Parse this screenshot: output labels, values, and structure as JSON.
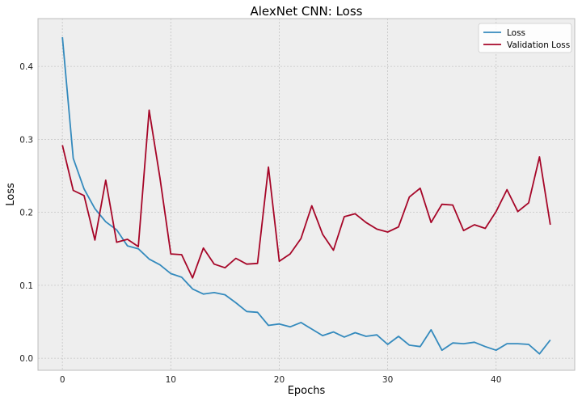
{
  "chart_data": {
    "type": "line",
    "title": "AlexNet CNN: Loss",
    "xlabel": "Epochs",
    "ylabel": "Loss",
    "xlim": [
      -2.25,
      47.25
    ],
    "ylim": [
      -0.0165,
      0.4655
    ],
    "xticks": [
      0,
      10,
      20,
      30,
      40
    ],
    "yticks": [
      0.0,
      0.1,
      0.2,
      0.3,
      0.4
    ],
    "ytick_labels": [
      "0.0",
      "0.1",
      "0.2",
      "0.3",
      "0.4"
    ],
    "grid": true,
    "legend_position": "top-right",
    "x": [
      0,
      1,
      2,
      3,
      4,
      5,
      6,
      7,
      8,
      9,
      10,
      11,
      12,
      13,
      14,
      15,
      16,
      17,
      18,
      19,
      20,
      21,
      22,
      23,
      24,
      25,
      26,
      27,
      28,
      29,
      30,
      31,
      32,
      33,
      34,
      35,
      36,
      37,
      38,
      39,
      40,
      41,
      42,
      43,
      44,
      45
    ],
    "series": [
      {
        "name": "Loss",
        "color": "#348abd",
        "values": [
          0.44,
          0.274,
          0.232,
          0.205,
          0.187,
          0.176,
          0.154,
          0.15,
          0.136,
          0.128,
          0.116,
          0.111,
          0.095,
          0.088,
          0.09,
          0.087,
          0.076,
          0.064,
          0.063,
          0.045,
          0.047,
          0.043,
          0.049,
          0.04,
          0.031,
          0.036,
          0.029,
          0.035,
          0.03,
          0.032,
          0.019,
          0.03,
          0.018,
          0.016,
          0.039,
          0.011,
          0.021,
          0.02,
          0.022,
          0.016,
          0.011,
          0.02,
          0.02,
          0.019,
          0.006,
          0.025
        ]
      },
      {
        "name": "Validation Loss",
        "color": "#a60628",
        "values": [
          0.292,
          0.23,
          0.223,
          0.162,
          0.244,
          0.159,
          0.163,
          0.153,
          0.34,
          0.247,
          0.143,
          0.142,
          0.11,
          0.151,
          0.129,
          0.124,
          0.137,
          0.129,
          0.13,
          0.262,
          0.133,
          0.143,
          0.164,
          0.209,
          0.17,
          0.148,
          0.194,
          0.198,
          0.186,
          0.177,
          0.173,
          0.18,
          0.221,
          0.233,
          0.186,
          0.211,
          0.21,
          0.175,
          0.183,
          0.178,
          0.201,
          0.231,
          0.201,
          0.213,
          0.276,
          0.183
        ]
      }
    ]
  },
  "colors": {
    "plot_background": "#eeeeee",
    "grid": "#c4c4c4",
    "spine": "#bcbcbc"
  }
}
